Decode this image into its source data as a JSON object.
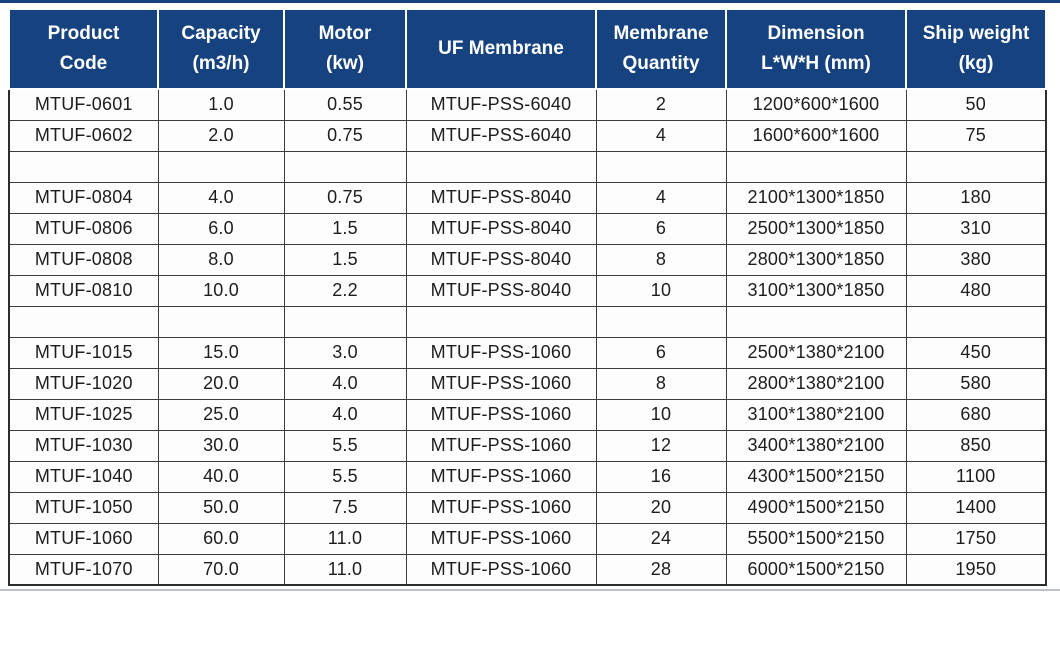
{
  "colors": {
    "header_bg": "#16437f",
    "header_text": "#ffffff",
    "top_rule": "#16437f",
    "bottom_rule": "#bcc0c8",
    "grid_border": "#3c3c3c",
    "cell_bg": "#fdfdfd"
  },
  "table": {
    "columns": [
      {
        "id": "product-code",
        "label": "Product\nCode"
      },
      {
        "id": "capacity",
        "label": "Capacity\n(m3/h)"
      },
      {
        "id": "motor",
        "label": "Motor\n(kw)"
      },
      {
        "id": "uf-membrane",
        "label": "UF Membrane"
      },
      {
        "id": "membrane-quantity",
        "label": "Membrane\nQuantity"
      },
      {
        "id": "dimension",
        "label": "Dimension\nL*W*H (mm)"
      },
      {
        "id": "ship-weight",
        "label": "Ship weight\n(kg)"
      }
    ],
    "rows": [
      [
        "MTUF-0601",
        "1.0",
        "0.55",
        "MTUF-PSS-6040",
        "2",
        "1200*600*1600",
        "50"
      ],
      [
        "MTUF-0602",
        "2.0",
        "0.75",
        "MTUF-PSS-6040",
        "4",
        "1600*600*1600",
        "75"
      ],
      [
        "",
        "",
        "",
        "",
        "",
        "",
        ""
      ],
      [
        "MTUF-0804",
        "4.0",
        "0.75",
        "MTUF-PSS-8040",
        "4",
        "2100*1300*1850",
        "180"
      ],
      [
        "MTUF-0806",
        "6.0",
        "1.5",
        "MTUF-PSS-8040",
        "6",
        "2500*1300*1850",
        "310"
      ],
      [
        "MTUF-0808",
        "8.0",
        "1.5",
        "MTUF-PSS-8040",
        "8",
        "2800*1300*1850",
        "380"
      ],
      [
        "MTUF-0810",
        "10.0",
        "2.2",
        "MTUF-PSS-8040",
        "10",
        "3100*1300*1850",
        "480"
      ],
      [
        "",
        "",
        "",
        "",
        "",
        "",
        ""
      ],
      [
        "MTUF-1015",
        "15.0",
        "3.0",
        "MTUF-PSS-1060",
        "6",
        "2500*1380*2100",
        "450"
      ],
      [
        "MTUF-1020",
        "20.0",
        "4.0",
        "MTUF-PSS-1060",
        "8",
        "2800*1380*2100",
        "580"
      ],
      [
        "MTUF-1025",
        "25.0",
        "4.0",
        "MTUF-PSS-1060",
        "10",
        "3100*1380*2100",
        "680"
      ],
      [
        "MTUF-1030",
        "30.0",
        "5.5",
        "MTUF-PSS-1060",
        "12",
        "3400*1380*2100",
        "850"
      ],
      [
        "MTUF-1040",
        "40.0",
        "5.5",
        "MTUF-PSS-1060",
        "16",
        "4300*1500*2150",
        "1100"
      ],
      [
        "MTUF-1050",
        "50.0",
        "7.5",
        "MTUF-PSS-1060",
        "20",
        "4900*1500*2150",
        "1400"
      ],
      [
        "MTUF-1060",
        "60.0",
        "11.0",
        "MTUF-PSS-1060",
        "24",
        "5500*1500*2150",
        "1750"
      ],
      [
        "MTUF-1070",
        "70.0",
        "11.0",
        "MTUF-PSS-1060",
        "28",
        "6000*1500*2150",
        "1950"
      ]
    ]
  }
}
